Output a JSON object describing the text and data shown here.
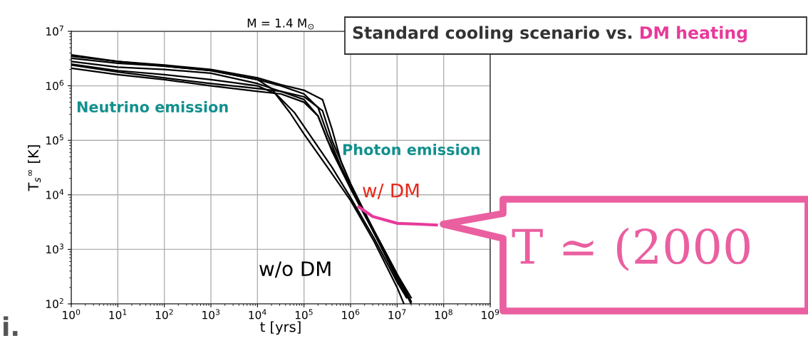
{
  "chart_data": {
    "type": "line",
    "title": "M = 1.4 M$_{⊙}$",
    "xlabel": "t [yrs]",
    "ylabel": "T$_{s}$$^{∞}$ [K]",
    "log": "xy",
    "grid": true,
    "marker": "none",
    "line_style": "solid",
    "xlim": [
      1,
      1000000000
    ],
    "ylim": [
      100,
      10000000
    ],
    "xticks": [
      {
        "value": 1,
        "label": "10$^{0}$"
      },
      {
        "value": 10,
        "label": "10$^{1}$"
      },
      {
        "value": 100,
        "label": "10$^{2}$"
      },
      {
        "value": 1000,
        "label": "10$^{3}$"
      },
      {
        "value": 10000,
        "label": "10$^{4}$"
      },
      {
        "value": 100000,
        "label": "10$^{5}$"
      },
      {
        "value": 1000000,
        "label": "10$^{6}$"
      },
      {
        "value": 10000000,
        "label": "10$^{7}$"
      },
      {
        "value": 100000000,
        "label": "10$^{8}$"
      },
      {
        "value": 1000000000,
        "label": "10$^{9}$"
      }
    ],
    "yticks": [
      {
        "value": 100,
        "label": "10$^{2}$"
      },
      {
        "value": 1000,
        "label": "10$^{3}$"
      },
      {
        "value": 10000,
        "label": "10$^{4}$"
      },
      {
        "value": 100000,
        "label": "10$^{5}$"
      },
      {
        "value": 1000000,
        "label": "10$^{6}$"
      },
      {
        "value": 10000000,
        "label": "10$^{7}$"
      }
    ],
    "series": [
      {
        "color": "#000000",
        "x": [
          1,
          10,
          100,
          1000.0,
          10000.0,
          32000.0,
          100000.0,
          250000.0,
          400000.0,
          630000.0,
          1000000.0,
          3200000.0,
          10000000.0,
          20000000.0
        ],
        "values": [
          3700000.0,
          2800000.0,
          2400000.0,
          2000000.0,
          1400000.0,
          1050000.0,
          830000.0,
          560000.0,
          160000.0,
          40000.0,
          16000.0,
          2000.0,
          320,
          100
        ]
      },
      {
        "color": "#000000",
        "x": [
          1,
          10,
          100,
          1000.0,
          10000.0,
          32000.0,
          100000.0,
          200000.0,
          320000.0,
          630000.0,
          1000000.0,
          3200000.0,
          10000000.0,
          20000000.0
        ],
        "values": [
          3200000.0,
          2600000.0,
          2300000.0,
          1900000.0,
          1300000.0,
          1000000.0,
          710000.0,
          400000.0,
          130000.0,
          32000.0,
          14000.0,
          2200.0,
          350,
          110
        ]
      },
      {
        "color": "#000000",
        "x": [
          1,
          10,
          100,
          1000.0,
          10000.0,
          32000.0,
          100000.0,
          200000.0,
          400000.0,
          1000000.0,
          3200000.0,
          10000000.0,
          16000000.0
        ],
        "values": [
          2800000.0,
          2200000.0,
          2000000.0,
          1700000.0,
          1100000.0,
          790000.0,
          560000.0,
          280000.0,
          63000.0,
          13000.0,
          2000.0,
          280,
          130
        ]
      },
      {
        "color": "#000000",
        "x": [
          1,
          10,
          100,
          1000.0,
          10000.0,
          20000.0,
          50000.0,
          100000.0,
          320000.0,
          1000000.0,
          3200000.0,
          10000000.0,
          14000000.0
        ],
        "values": [
          3500000.0,
          2800000.0,
          2300000.0,
          1900000.0,
          1300000.0,
          890000.0,
          320000.0,
          130000.0,
          32000.0,
          7900.0,
          1400.0,
          200,
          100
        ]
      },
      {
        "color": "#000000",
        "x": [
          1,
          10,
          100,
          1000.0,
          10000.0,
          25000.0,
          63000.0,
          160000.0,
          400000.0,
          1000000.0,
          3200000.0,
          10000000.0,
          16000000.0
        ],
        "values": [
          2500000.0,
          1900000.0,
          1600000.0,
          1300000.0,
          1000000.0,
          710000.0,
          320000.0,
          100000.0,
          32000.0,
          8900.0,
          1600.0,
          250,
          130
        ]
      },
      {
        "color": "#000000",
        "x": [
          1,
          10,
          100,
          1000.0,
          10000.0,
          32000.0,
          100000.0,
          200000.0,
          320000.0,
          630000.0,
          1000000.0,
          3200000.0,
          10000000.0,
          20000000.0
        ],
        "values": [
          2100000.0,
          1600000.0,
          1300000.0,
          1000000.0,
          790000.0,
          710000.0,
          500000.0,
          280000.0,
          100000.0,
          32000.0,
          14000.0,
          2000.0,
          320,
          110
        ]
      },
      {
        "color": "#000000",
        "x": [
          1,
          10,
          100,
          1000.0,
          10000.0,
          32000.0,
          100000.0,
          250000.0,
          400000.0,
          1000000.0,
          3200000.0,
          10000000.0,
          20000000.0
        ],
        "values": [
          2400000.0,
          1800000.0,
          1400000.0,
          1100000.0,
          890000.0,
          790000.0,
          630000.0,
          350000.0,
          100000.0,
          16000.0,
          2200.0,
          350,
          130
        ]
      },
      {
        "color": "#e8399a",
        "x": [
          1500000.0,
          3000000.0,
          10000000.0,
          30000000.0,
          70000000.0
        ],
        "values": [
          6000,
          4000,
          3000,
          2900,
          2800
        ]
      }
    ],
    "annotations": [
      "Neutrino emission",
      "Photon emission",
      "w/ DM",
      "w/o DM",
      "Standard cooling scenario vs.",
      "DM heating",
      "T ≃ (2000",
      "i."
    ]
  }
}
